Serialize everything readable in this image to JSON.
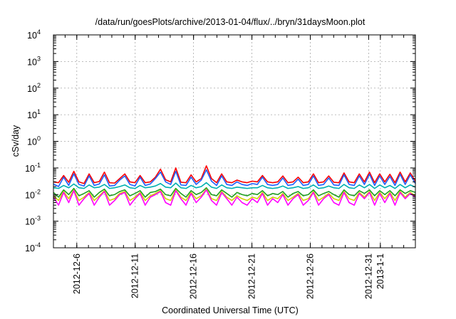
{
  "chart_data": {
    "type": "line",
    "title": "/data/run/goesPlots/archive/2013-01-04/flux/../bryn/31daysMoon.plot",
    "xlabel": "Coordinated Universal Time (UTC)",
    "ylabel": "cSv/day",
    "yscale": "log",
    "ylim": [
      0.0001,
      10000
    ],
    "xlim": [
      "2012-12-04",
      "2013-01-04"
    ],
    "grid": true,
    "legend": "none",
    "y_ticks": [
      {
        "base": "10",
        "exp": "-4",
        "value": 0.0001
      },
      {
        "base": "10",
        "exp": "-3",
        "value": 0.001
      },
      {
        "base": "10",
        "exp": "-2",
        "value": 0.01
      },
      {
        "base": "10",
        "exp": "-1",
        "value": 0.1
      },
      {
        "base": "10",
        "exp": "0",
        "value": 1
      },
      {
        "base": "10",
        "exp": "1",
        "value": 10
      },
      {
        "base": "10",
        "exp": "2",
        "value": 100
      },
      {
        "base": "10",
        "exp": "3",
        "value": 1000
      },
      {
        "base": "10",
        "exp": "4",
        "value": 10000
      }
    ],
    "x_ticks": [
      {
        "label": "2012-12-6",
        "date": "2012-12-06"
      },
      {
        "label": "2012-12-11",
        "date": "2012-12-11"
      },
      {
        "label": "2012-12-16",
        "date": "2012-12-16"
      },
      {
        "label": "2012-12-21",
        "date": "2012-12-21"
      },
      {
        "label": "2012-12-26",
        "date": "2012-12-26"
      },
      {
        "label": "2012-12-31",
        "date": "2012-12-31"
      },
      {
        "label": "2013-1-1",
        "date": "2013-01-01"
      }
    ],
    "series": [
      {
        "color": "#ff0000",
        "values": [
          0.03,
          0.028,
          0.052,
          0.029,
          0.075,
          0.03,
          0.026,
          0.06,
          0.028,
          0.031,
          0.07,
          0.028,
          0.027,
          0.04,
          0.06,
          0.03,
          0.028,
          0.052,
          0.028,
          0.03,
          0.045,
          0.09,
          0.036,
          0.03,
          0.1,
          0.029,
          0.028,
          0.055,
          0.03,
          0.04,
          0.12,
          0.04,
          0.028,
          0.06,
          0.03,
          0.028,
          0.035,
          0.03,
          0.028,
          0.032,
          0.03,
          0.052,
          0.03,
          0.028,
          0.03,
          0.05,
          0.028,
          0.03,
          0.045,
          0.028,
          0.03,
          0.06,
          0.028,
          0.03,
          0.05,
          0.029,
          0.028,
          0.065,
          0.03,
          0.028,
          0.06,
          0.03,
          0.07,
          0.028,
          0.06,
          0.03,
          0.058,
          0.028,
          0.07,
          0.03,
          0.065,
          0.032
        ]
      },
      {
        "color": "#2060ff",
        "values": [
          0.025,
          0.02,
          0.045,
          0.022,
          0.06,
          0.024,
          0.021,
          0.05,
          0.022,
          0.025,
          0.055,
          0.021,
          0.022,
          0.035,
          0.05,
          0.024,
          0.021,
          0.045,
          0.022,
          0.025,
          0.04,
          0.07,
          0.03,
          0.024,
          0.075,
          0.023,
          0.022,
          0.045,
          0.024,
          0.035,
          0.085,
          0.032,
          0.022,
          0.05,
          0.024,
          0.022,
          0.03,
          0.024,
          0.022,
          0.026,
          0.024,
          0.045,
          0.024,
          0.022,
          0.024,
          0.042,
          0.022,
          0.024,
          0.038,
          0.022,
          0.024,
          0.05,
          0.022,
          0.024,
          0.042,
          0.023,
          0.022,
          0.055,
          0.024,
          0.022,
          0.05,
          0.024,
          0.058,
          0.022,
          0.05,
          0.024,
          0.048,
          0.022,
          0.058,
          0.024,
          0.055,
          0.026
        ]
      },
      {
        "color": "#00b0b0",
        "values": [
          0.018,
          0.017,
          0.022,
          0.018,
          0.025,
          0.018,
          0.017,
          0.023,
          0.018,
          0.019,
          0.024,
          0.017,
          0.018,
          0.02,
          0.023,
          0.018,
          0.017,
          0.022,
          0.018,
          0.019,
          0.021,
          0.026,
          0.019,
          0.018,
          0.027,
          0.018,
          0.017,
          0.022,
          0.018,
          0.02,
          0.028,
          0.019,
          0.017,
          0.023,
          0.018,
          0.017,
          0.019,
          0.018,
          0.017,
          0.018,
          0.018,
          0.022,
          0.018,
          0.017,
          0.018,
          0.021,
          0.017,
          0.018,
          0.02,
          0.017,
          0.018,
          0.023,
          0.017,
          0.018,
          0.021,
          0.018,
          0.017,
          0.024,
          0.018,
          0.017,
          0.023,
          0.018,
          0.024,
          0.017,
          0.023,
          0.018,
          0.022,
          0.017,
          0.024,
          0.018,
          0.023,
          0.019
        ]
      },
      {
        "color": "#20a020",
        "values": [
          0.012,
          0.008,
          0.015,
          0.01,
          0.017,
          0.009,
          0.011,
          0.014,
          0.008,
          0.012,
          0.016,
          0.009,
          0.01,
          0.013,
          0.015,
          0.009,
          0.011,
          0.014,
          0.008,
          0.012,
          0.013,
          0.016,
          0.01,
          0.009,
          0.017,
          0.011,
          0.008,
          0.014,
          0.01,
          0.012,
          0.018,
          0.01,
          0.009,
          0.015,
          0.011,
          0.008,
          0.012,
          0.01,
          0.009,
          0.011,
          0.01,
          0.014,
          0.009,
          0.011,
          0.01,
          0.013,
          0.008,
          0.011,
          0.013,
          0.009,
          0.01,
          0.015,
          0.009,
          0.011,
          0.013,
          0.01,
          0.008,
          0.015,
          0.01,
          0.009,
          0.014,
          0.011,
          0.015,
          0.009,
          0.014,
          0.01,
          0.014,
          0.009,
          0.015,
          0.011,
          0.014,
          0.012
        ]
      },
      {
        "color": "#d0d000",
        "values": [
          0.009,
          0.006,
          0.013,
          0.007,
          0.015,
          0.006,
          0.008,
          0.012,
          0.006,
          0.009,
          0.014,
          0.006,
          0.007,
          0.011,
          0.013,
          0.006,
          0.008,
          0.012,
          0.006,
          0.009,
          0.011,
          0.014,
          0.007,
          0.006,
          0.015,
          0.008,
          0.006,
          0.012,
          0.007,
          0.009,
          0.016,
          0.007,
          0.006,
          0.013,
          0.008,
          0.006,
          0.009,
          0.007,
          0.006,
          0.008,
          0.007,
          0.012,
          0.006,
          0.008,
          0.007,
          0.011,
          0.006,
          0.008,
          0.011,
          0.006,
          0.007,
          0.013,
          0.006,
          0.008,
          0.011,
          0.007,
          0.006,
          0.013,
          0.007,
          0.006,
          0.012,
          0.008,
          0.013,
          0.006,
          0.012,
          0.007,
          0.012,
          0.006,
          0.013,
          0.008,
          0.012,
          0.009
        ]
      },
      {
        "color": "#ff00ff",
        "values": [
          0.008,
          0.004,
          0.012,
          0.005,
          0.014,
          0.004,
          0.007,
          0.011,
          0.004,
          0.008,
          0.013,
          0.004,
          0.006,
          0.01,
          0.012,
          0.004,
          0.007,
          0.011,
          0.004,
          0.008,
          0.01,
          0.013,
          0.005,
          0.004,
          0.014,
          0.007,
          0.004,
          0.011,
          0.005,
          0.008,
          0.015,
          0.006,
          0.004,
          0.012,
          0.007,
          0.004,
          0.008,
          0.005,
          0.004,
          0.007,
          0.005,
          0.011,
          0.004,
          0.007,
          0.005,
          0.01,
          0.004,
          0.007,
          0.01,
          0.004,
          0.006,
          0.012,
          0.004,
          0.007,
          0.01,
          0.005,
          0.004,
          0.012,
          0.005,
          0.004,
          0.011,
          0.007,
          0.012,
          0.004,
          0.011,
          0.005,
          0.011,
          0.004,
          0.012,
          0.007,
          0.011,
          0.008
        ]
      }
    ]
  }
}
